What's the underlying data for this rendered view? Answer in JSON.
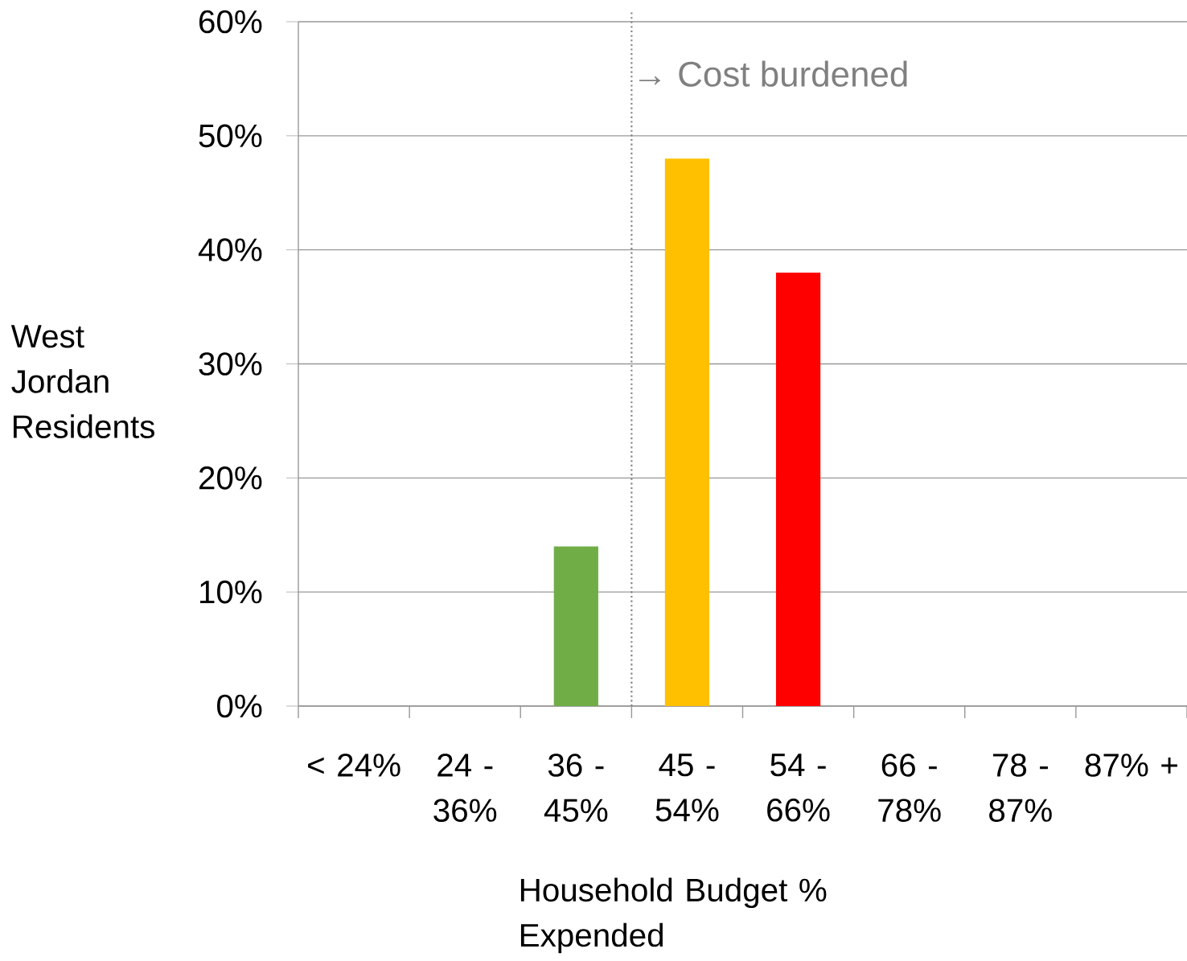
{
  "chart_data": {
    "type": "bar",
    "categories": [
      "< 24%",
      "24 - 36%",
      "36 - 45%",
      "45 - 54%",
      "54 - 66%",
      "66 - 78%",
      "78 - 87%",
      "87% +"
    ],
    "values": [
      0,
      0,
      14,
      48,
      38,
      0,
      0,
      0
    ],
    "colors": [
      null,
      null,
      "#70ad47",
      "#ffc000",
      "#ff0000",
      null,
      null,
      null
    ],
    "xlabel": "Household Budget % Expended",
    "ylabel": "West Jordan Residents",
    "ylim": [
      0,
      60
    ],
    "yticks": [
      {
        "value": 0,
        "label": "0%"
      },
      {
        "value": 10,
        "label": "10%"
      },
      {
        "value": 20,
        "label": "20%"
      },
      {
        "value": 30,
        "label": "30%"
      },
      {
        "value": 40,
        "label": "40%"
      },
      {
        "value": 50,
        "label": "50%"
      },
      {
        "value": 60,
        "label": "60%"
      }
    ],
    "grid": "y",
    "ref_lines": [
      {
        "axis": "x",
        "value": "45 - 54%",
        "label": "→ Cost burdened",
        "color": "#808080",
        "line_style": "dotted"
      }
    ]
  }
}
